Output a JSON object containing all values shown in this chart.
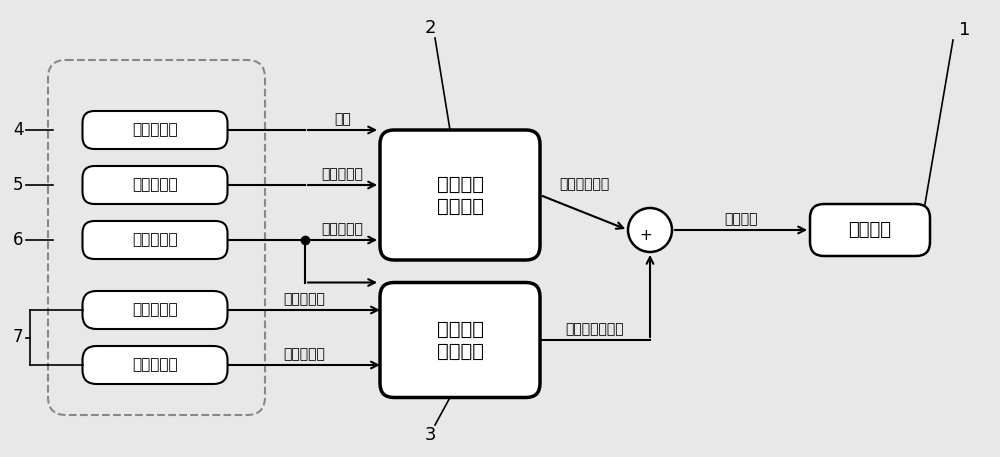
{
  "bg_color": "#e8e8e8",
  "box_color": "#ffffff",
  "box_edge": "#000000",
  "text_color": "#000000",
  "sensors": [
    "车速传感器",
    "扔矩传感器",
    "转角传感器"
  ],
  "motors": [
    "左前轮电机",
    "左前轮电机"
  ],
  "block_eps_line1": "电动助力",
  "block_eps_line2": "转向单元",
  "block_comp_line1": "力矩补偿",
  "block_comp_line2": "计算模块",
  "block_motor": "助力电机",
  "label1": "1",
  "label2": "2",
  "label3": "3",
  "label4": "4",
  "label5": "5",
  "label6": "6",
  "label7": "7",
  "arrow_label_0": "车速",
  "arrow_label_1": "方向盘力矩",
  "arrow_label_2": "方向盘转角",
  "arrow_label_3": "转矩、转速",
  "arrow_label_4": "转矩、转速",
  "label_eps_out": "助力力矩初值",
  "label_comp_out": "助力力矩补偿值",
  "label_sum_out": "力矩命令",
  "plus_sign": "+"
}
